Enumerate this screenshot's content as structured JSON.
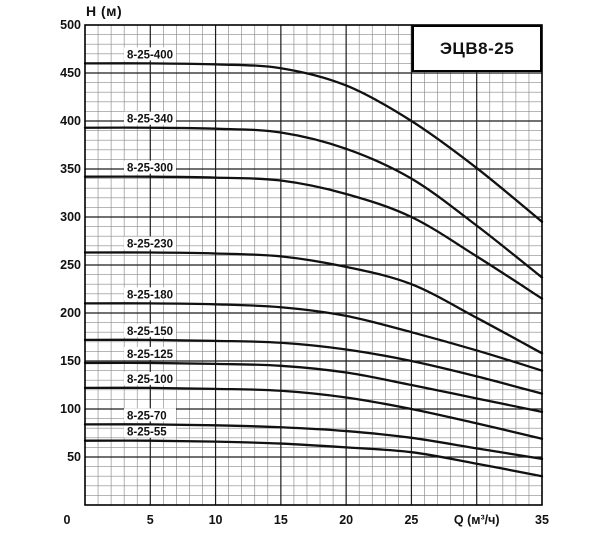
{
  "chart_data": {
    "type": "line",
    "title": "ЭЦВ8-25",
    "xlabel": "Q (м³/ч)",
    "ylabel": "Н (м)",
    "xlim": [
      0,
      35
    ],
    "ylim": [
      0,
      500
    ],
    "grid": "on",
    "grid_minor_x_step": 1,
    "grid_minor_y_step": 10,
    "grid_major_x_step": 5,
    "grid_major_y_step": 50,
    "legend_position": "inline-curve-labels",
    "y_ticks": [
      50,
      100,
      150,
      200,
      250,
      300,
      350,
      400,
      450,
      500
    ],
    "x_ticks": [
      {
        "value": 0,
        "label": "0"
      },
      {
        "value": 5,
        "label": "5"
      },
      {
        "value": 10,
        "label": "10"
      },
      {
        "value": 15,
        "label": "15"
      },
      {
        "value": 20,
        "label": "20"
      },
      {
        "value": 25,
        "label": "25"
      },
      {
        "value": 30,
        "label": "Q (м³/ч)"
      },
      {
        "value": 35,
        "label": "35"
      }
    ],
    "x": [
      0,
      5,
      10,
      15,
      20,
      25,
      30,
      35
    ],
    "series": [
      {
        "name": "8-25-400",
        "values": [
          460,
          460,
          459,
          455,
          437,
          400,
          351,
          295
        ]
      },
      {
        "name": "8-25-340",
        "values": [
          393,
          393,
          392,
          388,
          371,
          340,
          291,
          237
        ]
      },
      {
        "name": "8-25-300",
        "values": [
          342,
          342,
          341,
          338,
          324,
          300,
          259,
          215
        ]
      },
      {
        "name": "8-25-230",
        "values": [
          263,
          263,
          262,
          259,
          248,
          230,
          195,
          158
        ]
      },
      {
        "name": "8-25-180",
        "values": [
          210,
          210,
          209,
          206,
          197,
          180,
          161,
          140
        ]
      },
      {
        "name": "8-25-150",
        "values": [
          172,
          172,
          171,
          169,
          162,
          150,
          134,
          116
        ]
      },
      {
        "name": "8-25-125",
        "values": [
          148,
          148,
          147,
          145,
          138,
          125,
          111,
          97
        ]
      },
      {
        "name": "8-25-100",
        "values": [
          122,
          122,
          121,
          119,
          112,
          100,
          85,
          69
        ]
      },
      {
        "name": "8-25-70",
        "values": [
          84,
          84,
          83,
          81,
          77,
          70,
          59,
          48
        ]
      },
      {
        "name": "8-25-55",
        "values": [
          67,
          67,
          66,
          64,
          60,
          55,
          43,
          30
        ]
      }
    ]
  },
  "colors": {
    "background": "#ffffff",
    "curve": "#111111",
    "grid_minor": "#8a8a8a",
    "grid_major": "#1c1c1c",
    "frame": "#000000",
    "text": "#111111",
    "label_bg": "#ffffff"
  }
}
